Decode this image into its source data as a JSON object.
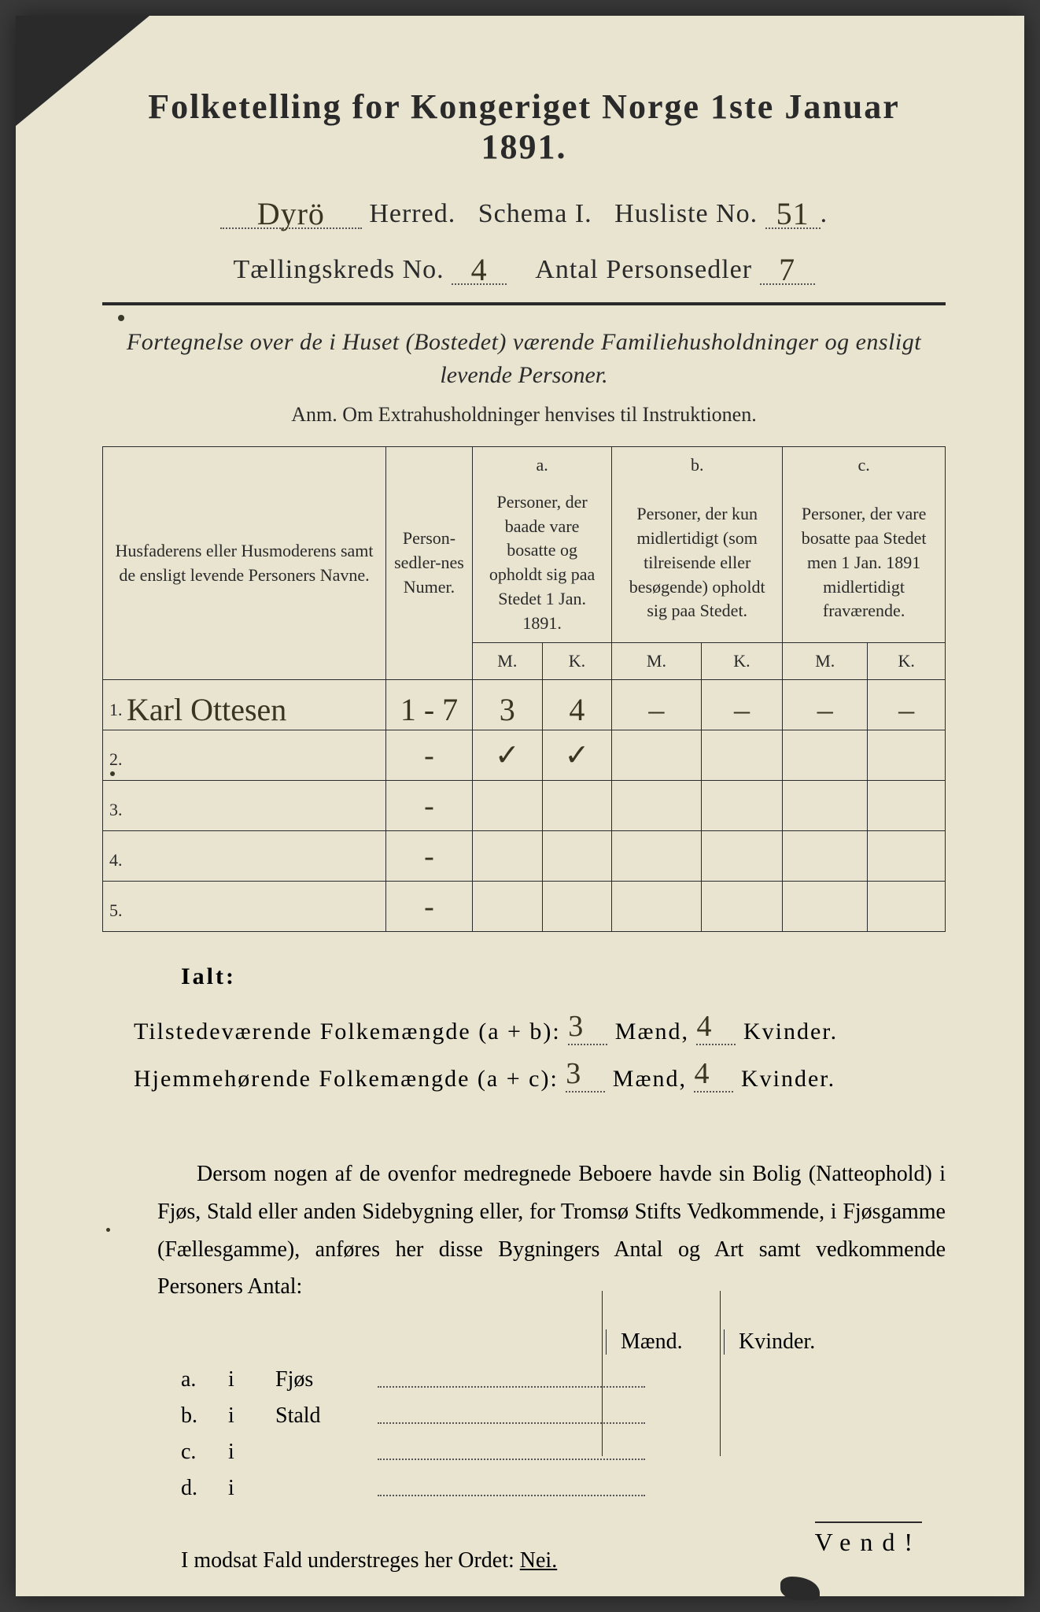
{
  "colors": {
    "paper": "#e8e4d0",
    "ink": "#2a2a2a",
    "handwriting": "#3a3520",
    "background": "#3a3a3a"
  },
  "header": {
    "title": "Folketelling for Kongeriget Norge 1ste Januar 1891.",
    "herred_label": "Herred.",
    "herred_value": "Dyrö",
    "schema": "Schema I.",
    "husliste_label": "Husliste No.",
    "husliste_value": "51",
    "kreds_label": "Tællingskreds No.",
    "kreds_value": "4",
    "antal_label": "Antal Personsedler",
    "antal_value": "7"
  },
  "subtitle": {
    "line1": "Fortegnelse over de i Huset (Bostedet) værende Familiehusholdninger og ensligt",
    "line2": "levende Personer.",
    "anm": "Anm.  Om Extrahusholdninger henvises til Instruktionen."
  },
  "table": {
    "col1": "Husfaderens eller Husmoderens samt de ensligt levende Personers Navne.",
    "col2": "Person-sedler-nes Numer.",
    "col_a_label": "a.",
    "col_a_text": "Personer, der baade vare bosatte og opholdt sig paa Stedet 1 Jan. 1891.",
    "col_b_label": "b.",
    "col_b_text": "Personer, der kun midlertidigt (som tilreisende eller besøgende) opholdt sig paa Stedet.",
    "col_c_label": "c.",
    "col_c_text": "Personer, der vare bosatte paa Stedet men 1 Jan. 1891 midlertidigt fraværende.",
    "M": "M.",
    "K": "K.",
    "rows": [
      {
        "num": "1.",
        "name": "Karl Ottesen",
        "sedler": "1 - 7",
        "aM": "3",
        "aK": "4",
        "bM": "–",
        "bK": "–",
        "cM": "–",
        "cK": "–"
      },
      {
        "num": "2.",
        "name": "",
        "sedler": "-",
        "aM": "✓",
        "aK": "✓",
        "bM": "",
        "bK": "",
        "cM": "",
        "cK": ""
      },
      {
        "num": "3.",
        "name": "",
        "sedler": "-",
        "aM": "",
        "aK": "",
        "bM": "",
        "bK": "",
        "cM": "",
        "cK": ""
      },
      {
        "num": "4.",
        "name": "",
        "sedler": "-",
        "aM": "",
        "aK": "",
        "bM": "",
        "bK": "",
        "cM": "",
        "cK": ""
      },
      {
        "num": "5.",
        "name": "",
        "sedler": "-",
        "aM": "",
        "aK": "",
        "bM": "",
        "bK": "",
        "cM": "",
        "cK": ""
      }
    ]
  },
  "totals": {
    "ialt": "Ialt:",
    "line1_label": "Tilstedeværende Folkemængde (a + b):",
    "line1_maend": "3",
    "line1_kvinder": "4",
    "line2_label": "Hjemmehørende Folkemængde (a + c):",
    "line2_maend": "3",
    "line2_kvinder": "4",
    "maend": "Mænd,",
    "kvinder": "Kvinder."
  },
  "paragraph": "Dersom nogen af de ovenfor medregnede Beboere havde sin Bolig (Natteophold) i Fjøs, Stald eller anden Sidebygning eller, for Tromsø Stifts Vedkommende, i Fjøsgamme (Fællesgamme), anføres her disse Bygningers Antal og Art samt vedkommende Personers Antal:",
  "side": {
    "maend": "Mænd.",
    "kvinder": "Kvinder.",
    "rows": [
      {
        "label": "a.",
        "i": "i",
        "name": "Fjøs"
      },
      {
        "label": "b.",
        "i": "i",
        "name": "Stald"
      },
      {
        "label": "c.",
        "i": "i",
        "name": ""
      },
      {
        "label": "d.",
        "i": "i",
        "name": ""
      }
    ]
  },
  "nei": {
    "text": "I modsat Fald understreges her Ordet:",
    "word": "Nei."
  },
  "vend": "Vend!"
}
